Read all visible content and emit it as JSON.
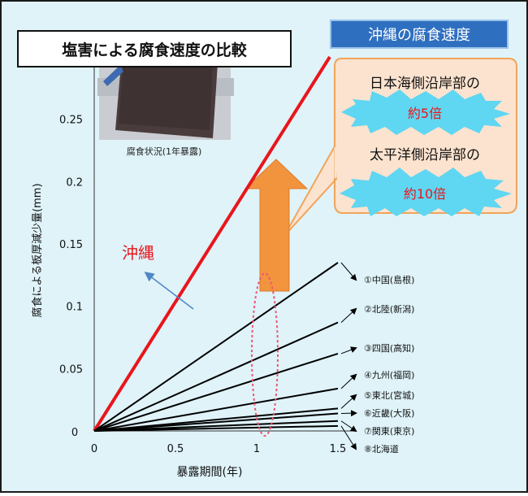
{
  "title": "塩害による腐食速度の比較",
  "okinawa_header": "沖縄の腐食速度",
  "photo_caption": "腐食状況(1年暴露)",
  "callout": {
    "line1": "日本海側沿岸部の",
    "burst1": "約5倍",
    "line2": "太平洋側沿岸部の",
    "burst2": "約10倍"
  },
  "okinawa_label": "沖縄",
  "colors": {
    "background": "#dff3f9",
    "frame": "#1a1a1a",
    "okinawa_line": "#e8161b",
    "okinawa_text": "#e8161b",
    "header_bg": "#2f6fbf",
    "callout_bg": "#fbe3cf",
    "callout_border": "#f1a45a",
    "burst": "#5fd6f2",
    "arrow": "#f2933e",
    "ellipse": "#f0556e",
    "pointer_arrow": "#4f86c6"
  },
  "chart_data": {
    "type": "line",
    "xlabel": "暴露期間(年)",
    "ylabel": "腐食による板厚減少量(mm)",
    "xlim": [
      0,
      1.6
    ],
    "ylim": [
      0,
      0.3
    ],
    "x_ticks": [
      "0",
      "0.5",
      "1",
      "1.5"
    ],
    "y_ticks": [
      "0.05",
      "0.1",
      "0.15",
      "0.2",
      "0.25"
    ],
    "origin_label": "0",
    "series": [
      {
        "name": "沖縄",
        "x": [
          0,
          1.45
        ],
        "y": [
          0,
          0.3
        ],
        "color": "#e8161b"
      },
      {
        "name": "①中国(島根)",
        "x": [
          0,
          1.5
        ],
        "y": [
          0,
          0.135
        ],
        "color": "#000000"
      },
      {
        "name": "②北陸(新潟)",
        "x": [
          0,
          1.5
        ],
        "y": [
          0,
          0.087
        ],
        "color": "#000000"
      },
      {
        "name": "③四国(高知)",
        "x": [
          0,
          1.5
        ],
        "y": [
          0,
          0.062
        ],
        "color": "#000000"
      },
      {
        "name": "④九州(福岡)",
        "x": [
          0,
          1.5
        ],
        "y": [
          0,
          0.034
        ],
        "color": "#000000"
      },
      {
        "name": "⑤東北(宮城)",
        "x": [
          0,
          1.5
        ],
        "y": [
          0,
          0.018
        ],
        "color": "#000000"
      },
      {
        "name": "⑥近畿(大阪)",
        "x": [
          0,
          1.5
        ],
        "y": [
          0,
          0.014
        ],
        "color": "#000000"
      },
      {
        "name": "⑦関東(東京)",
        "x": [
          0,
          1.5
        ],
        "y": [
          0,
          0.008
        ],
        "color": "#000000"
      },
      {
        "name": "⑧北海道",
        "x": [
          0,
          1.5
        ],
        "y": [
          0,
          0.004
        ],
        "color": "#000000"
      }
    ]
  }
}
